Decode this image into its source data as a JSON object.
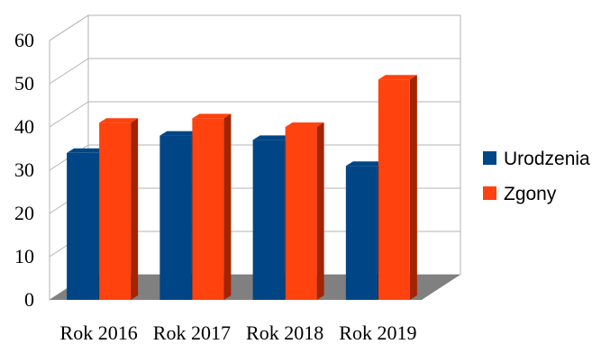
{
  "chart_data": {
    "type": "bar",
    "categories": [
      "Rok 2016",
      "Rok 2017",
      "Rok 2018",
      "Rok 2019"
    ],
    "series": [
      {
        "name": "Urodzenia",
        "values": [
          34,
          38,
          37,
          31
        ],
        "color": "#004586",
        "shade": "#002a57"
      },
      {
        "name": "Zgony",
        "values": [
          41,
          42,
          40,
          51
        ],
        "color": "#ff420e",
        "shade": "#a32400"
      }
    ],
    "ylim": [
      0,
      60
    ],
    "yticks": [
      "0",
      "10",
      "20",
      "30",
      "40",
      "50",
      "60"
    ],
    "grid": true,
    "style": "3d",
    "legend_position": "right",
    "wall_color": "#ffffff",
    "gridline_color": "#b3b3b3",
    "floor_color": "#808080"
  }
}
